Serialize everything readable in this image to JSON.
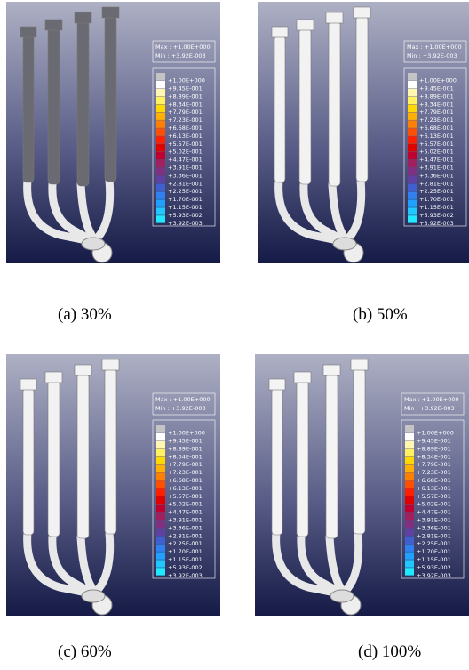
{
  "panels": [
    {
      "caption": "(a)  30%"
    },
    {
      "caption": "(b)  50%"
    },
    {
      "caption": "(c)  60%"
    },
    {
      "caption": "(d)  100%"
    }
  ],
  "legend": {
    "max": "Max : +1.00E+000",
    "min": "Min : +3.92E-003",
    "labels": [
      "+1.00E+000",
      "+9.45E-001",
      "+8.89E-001",
      "+8.34E-001",
      "+7.79E-001",
      "+7.23E-001",
      "+6.68E-001",
      "+6.13E-001",
      "+5.57E-001",
      "+5.02E-001",
      "+4.47E-001",
      "+3.91E-001",
      "+3.36E-001",
      "+2.81E-001",
      "+2.25E-001",
      "+1.70E-001",
      "+1.15E-001",
      "+5.93E-002",
      "+3.92E-003"
    ],
    "colors": [
      "#c4c4c4",
      "#ffffff",
      "#fff7b0",
      "#fff160",
      "#ffd800",
      "#ffb000",
      "#ff8000",
      "#ff5000",
      "#ff2000",
      "#e00000",
      "#c00030",
      "#a02060",
      "#803080",
      "#6040a0",
      "#4060d0",
      "#3080f0",
      "#20a0ff",
      "#20c8ff",
      "#20e8ff"
    ]
  }
}
